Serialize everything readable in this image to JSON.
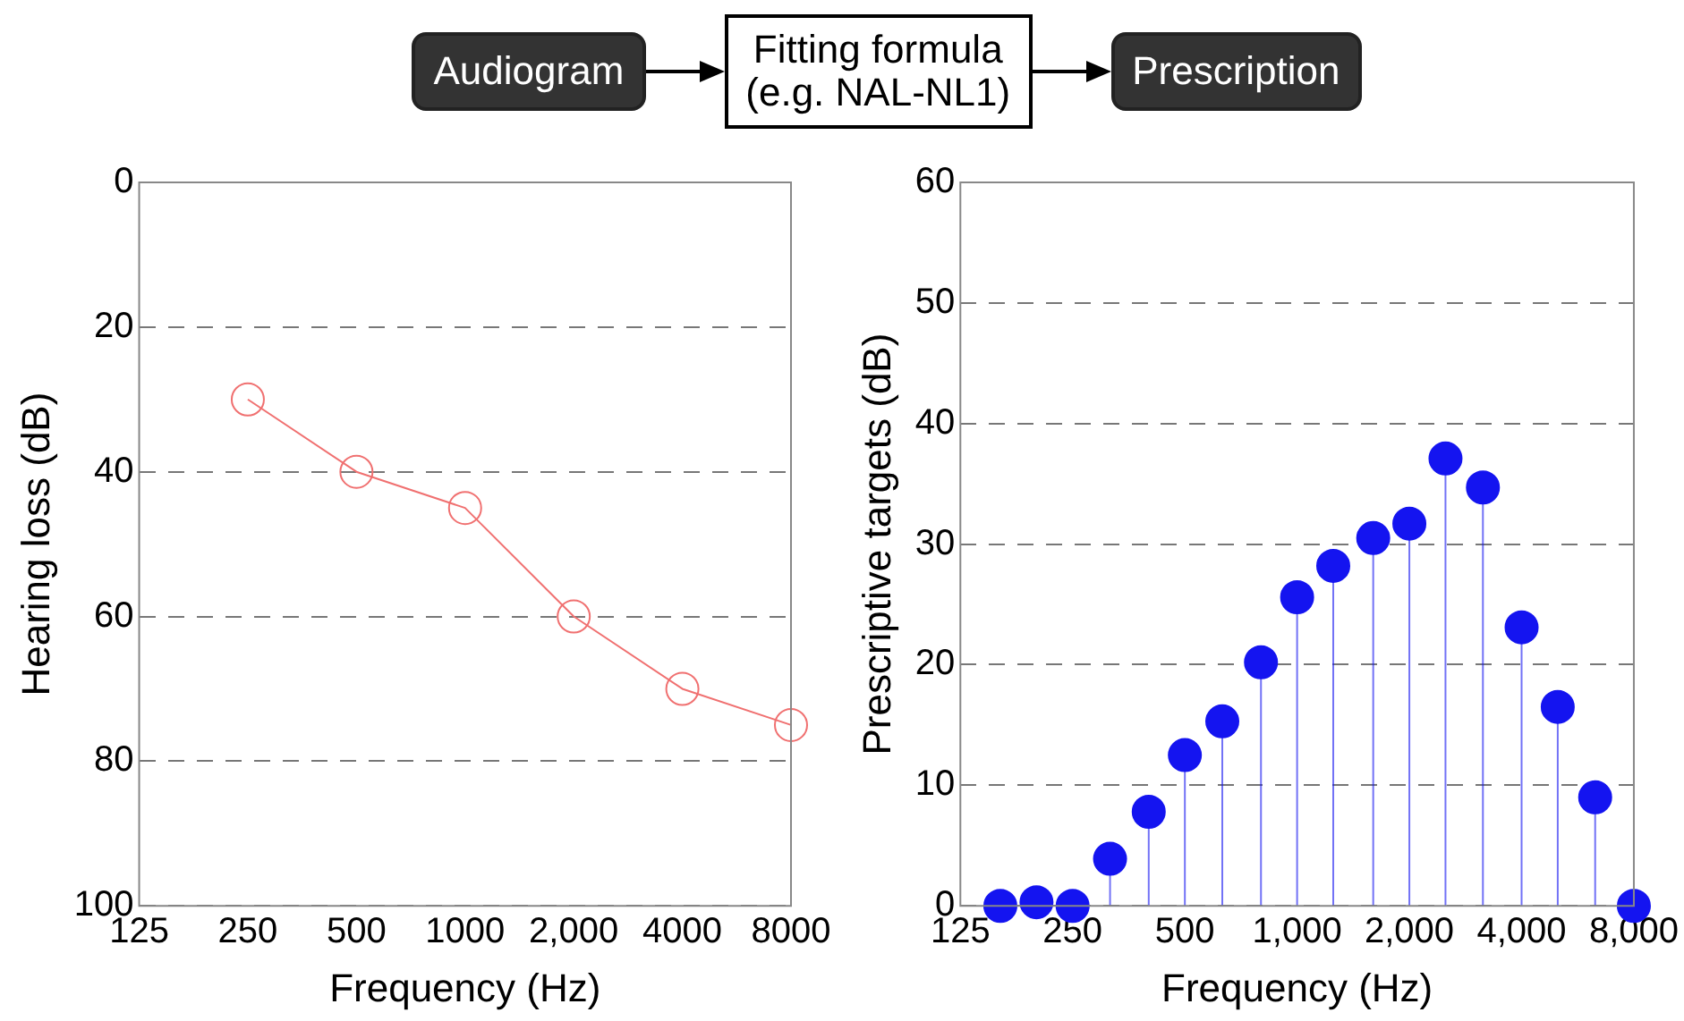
{
  "chart_data": [
    {
      "type": "other",
      "annotations": [
        "Audiogram",
        "Fitting formula\n(e.g. NAL-NL1)",
        "Prescription"
      ]
    },
    {
      "type": "line",
      "xlabel": "Frequency (Hz)",
      "ylabel": "Hearing loss (dB)",
      "log": "x",
      "x": [
        250,
        500,
        1000,
        2000,
        4000,
        8000
      ],
      "series": [
        {
          "color": "#f07070",
          "values": [
            30,
            40,
            45,
            60,
            70,
            75
          ]
        }
      ],
      "marker": "circle",
      "grid": "y",
      "legend": false,
      "xlim": [
        125,
        8000
      ],
      "xticks": [
        125,
        250,
        500,
        1000,
        {
          "value": 2000,
          "label": "2,000"
        },
        4000,
        8000
      ],
      "ylim": [
        100,
        0
      ],
      "yticks": [
        0,
        20,
        40,
        60,
        80,
        100
      ]
    },
    {
      "type": "lollipop",
      "xlabel": "Frequency (Hz)",
      "ylabel": "Prescriptive targets (dB)",
      "log": "x",
      "x": [
        160,
        200,
        250,
        315,
        400,
        500,
        630,
        800,
        1000,
        1250,
        1600,
        2000,
        2500,
        3150,
        4000,
        5000,
        6300,
        8000
      ],
      "series": [
        {
          "color": "#1414f0",
          "values": [
            0,
            0.3,
            0,
            3.9,
            7.8,
            12.5,
            15.3,
            20.2,
            25.6,
            28.2,
            30.5,
            31.7,
            37.1,
            34.7,
            23.1,
            16.5,
            9,
            0
          ]
        }
      ],
      "marker": "circle",
      "grid": "y",
      "legend": false,
      "xlim": [
        125,
        8000
      ],
      "xticks": [
        125,
        250,
        500,
        {
          "value": 1000,
          "label": "1,000"
        },
        {
          "value": 2000,
          "label": "2,000"
        },
        {
          "value": 4000,
          "label": "4,000"
        },
        {
          "value": 8000,
          "label": "8,000"
        }
      ],
      "ylim": [
        0,
        60
      ],
      "yticks": [
        0,
        10,
        20,
        30,
        40,
        50,
        60
      ]
    }
  ]
}
